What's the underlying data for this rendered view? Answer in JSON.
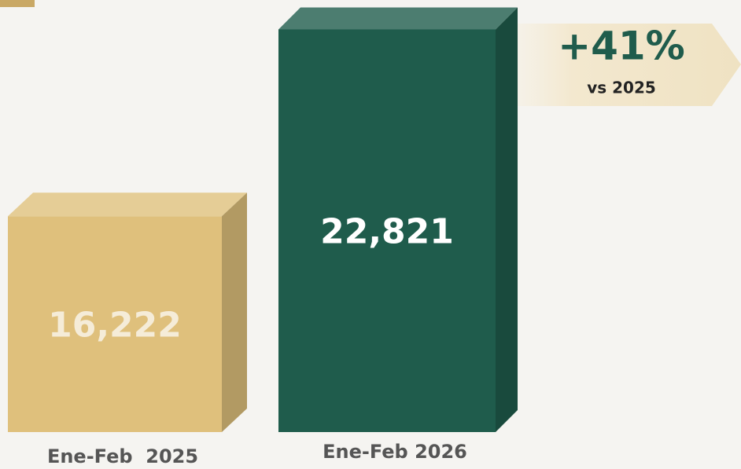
{
  "chart_data": {
    "type": "bar3d",
    "categories": [
      "Ene-Feb  2025",
      "Ene-Feb 2026"
    ],
    "values": [
      16222,
      22821
    ],
    "value_labels": [
      "16,222",
      "22,821"
    ],
    "colors": [
      "#dfc07c",
      "#1f5c4c"
    ],
    "ylim": [
      8600,
      23000
    ],
    "annotation": {
      "label": "+41%",
      "text": "vs 2025"
    }
  }
}
